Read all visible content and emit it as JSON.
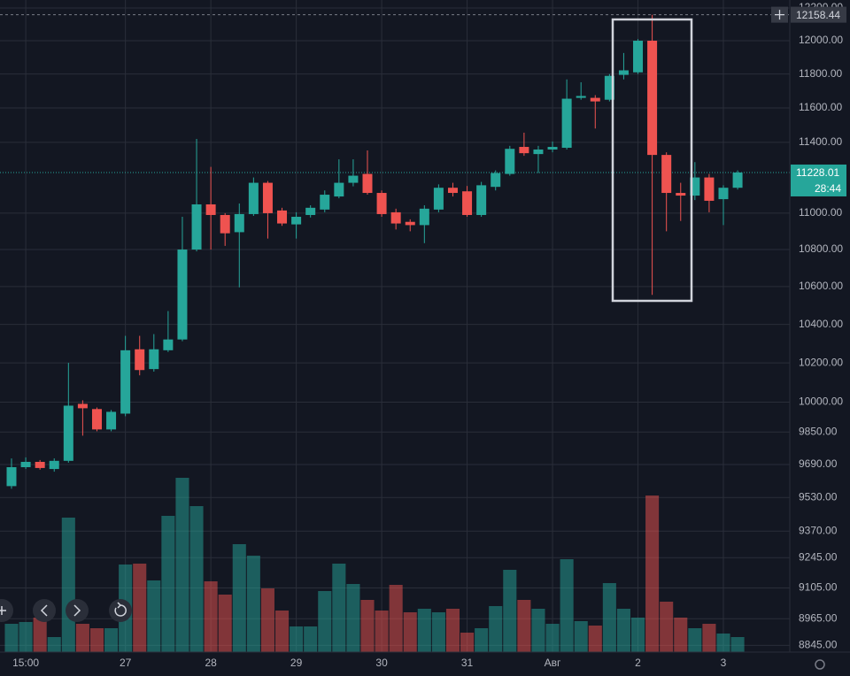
{
  "chart_data": {
    "type": "candlestick",
    "log_scale": true,
    "grid": true,
    "up_color": "#26a69a",
    "down_color": "#ef5350",
    "categories": [
      null,
      "15:00",
      null,
      null,
      null,
      null,
      null,
      null,
      "27",
      null,
      null,
      null,
      null,
      null,
      "28",
      null,
      null,
      null,
      null,
      null,
      "29",
      null,
      null,
      null,
      null,
      null,
      "30",
      null,
      null,
      null,
      null,
      null,
      "31",
      null,
      null,
      null,
      null,
      null,
      "Авг",
      null,
      null,
      null,
      null,
      null,
      "2",
      null,
      null,
      null,
      null,
      null,
      "3",
      null
    ],
    "open": [
      9585,
      9677,
      9703,
      9668,
      9708,
      9991,
      9965,
      9863,
      9942,
      10270,
      10168,
      10265,
      10321,
      10800,
      11049,
      10990,
      10895,
      10995,
      11170,
      11015,
      10938,
      10990,
      11020,
      11093,
      11170,
      11220,
      11113,
      11005,
      10952,
      10934,
      11020,
      11142,
      11122,
      10990,
      11147,
      11220,
      11374,
      11333,
      11359,
      11369,
      11659,
      11659,
      11648,
      11795,
      11810,
      12000,
      11328,
      11113,
      11098,
      11200,
      11078,
      11142
    ],
    "high": [
      9720,
      9725,
      9712,
      9720,
      10200,
      10009,
      9973,
      9960,
      10340,
      10340,
      10349,
      10470,
      10980,
      11420,
      11260,
      11000,
      11054,
      11200,
      11180,
      11030,
      11005,
      11044,
      11127,
      11303,
      11303,
      11354,
      11127,
      11025,
      10966,
      11044,
      11161,
      11170,
      11152,
      11175,
      11240,
      11380,
      11456,
      11380,
      11405,
      11768,
      11751,
      11675,
      11800,
      11926,
      12010,
      12158.44,
      11343,
      11170,
      11287,
      11220,
      11156,
      11240
    ],
    "low": [
      9572,
      9668,
      9665,
      9655,
      9699,
      9832,
      9854,
      9854,
      9929,
      10136,
      10155,
      10256,
      10312,
      10790,
      10800,
      10820,
      10596,
      10985,
      10860,
      10930,
      10860,
      10976,
      11005,
      11083,
      11150,
      11103,
      10980,
      10910,
      10900,
      10835,
      11005,
      11093,
      10980,
      10980,
      11127,
      11210,
      11323,
      11225,
      11343,
      11359,
      11648,
      11480,
      11638,
      11768,
      11800,
      10556,
      10900,
      10957,
      11073,
      11005,
      10934,
      11132
    ],
    "close": [
      9677,
      9703,
      9673,
      9708,
      9982,
      9969,
      9863,
      9951,
      10265,
      10163,
      10270,
      10321,
      10800,
      11049,
      10990,
      10889,
      10995,
      11170,
      11000,
      10943,
      10980,
      11030,
      11103,
      11170,
      11210,
      11113,
      10995,
      10943,
      10934,
      11025,
      11142,
      11113,
      10990,
      11156,
      11225,
      11363,
      11338,
      11359,
      11374,
      11654,
      11670,
      11638,
      11789,
      11822,
      12000,
      11328,
      11113,
      11098,
      11200,
      11069,
      11142,
      11228.01
    ],
    "volume": [
      32,
      34,
      39,
      17,
      152,
      32,
      27,
      27,
      99,
      100,
      81,
      154,
      197,
      165,
      80,
      65,
      122,
      109,
      72,
      47,
      29,
      29,
      69,
      100,
      77,
      59,
      47,
      76,
      45,
      49,
      45,
      49,
      22,
      27,
      52,
      93,
      59,
      49,
      32,
      105,
      35,
      30,
      78,
      49,
      39,
      177,
      57,
      39,
      27,
      32,
      21,
      17
    ],
    "ylim": [
      8815,
      12249
    ],
    "yticks": [
      {
        "value": 12200,
        "label": "12200.00"
      },
      {
        "value": 12000,
        "label": "12000.00"
      },
      {
        "value": 11800,
        "label": "11800.00"
      },
      {
        "value": 11600,
        "label": "11600.00"
      },
      {
        "value": 11400,
        "label": "11400.00"
      },
      {
        "value": 11000,
        "label": "11000.00"
      },
      {
        "value": 10800,
        "label": "10800.00"
      },
      {
        "value": 10600,
        "label": "10600.00"
      },
      {
        "value": 10400,
        "label": "10400.00"
      },
      {
        "value": 10200,
        "label": "10200.00"
      },
      {
        "value": 10000,
        "label": "10000.00"
      },
      {
        "value": 9850,
        "label": "9850.00"
      },
      {
        "value": 9690,
        "label": "9690.00"
      },
      {
        "value": 9530,
        "label": "9530.00"
      },
      {
        "value": 9370,
        "label": "9370.00"
      },
      {
        "value": 9245,
        "label": "9245.00"
      },
      {
        "value": 9105,
        "label": "9105.00"
      },
      {
        "value": 8965,
        "label": "8965.00"
      },
      {
        "value": 8845,
        "label": "8845.00"
      }
    ],
    "high_price": 12158.44,
    "current_price": 11228.01,
    "countdown": "28:44"
  }
}
